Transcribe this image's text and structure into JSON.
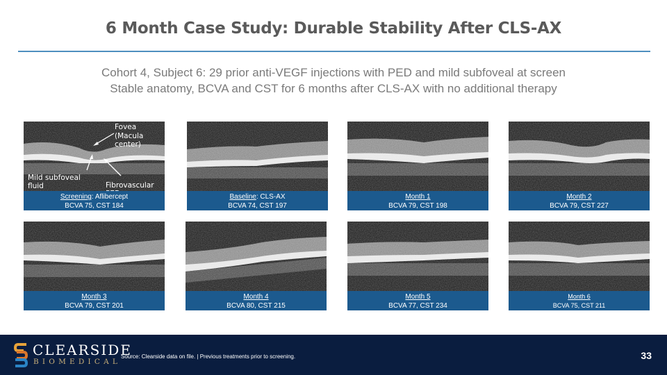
{
  "slide": {
    "title": "6 Month Case Study: Durable Stability After CLS-AX",
    "subtitle_line1": "Cohort 4, Subject 6: 29 prior anti-VEGF injections with PED and mild subfoveal at screen",
    "subtitle_line2": "Stable anatomy, BCVA and CST for 6 months after CLS-AX with no additional therapy",
    "page_number": "33"
  },
  "annotations": {
    "fovea": "Fovea",
    "macula": "(Macula center)",
    "fluid_line1": "Mild subfoveal",
    "fluid_line2": "fluid",
    "ped": "Fibrovascular PED"
  },
  "panels": [
    {
      "label": "Screening",
      "label_suffix": ": Aflibercept",
      "stats": "BCVA 75, CST 184"
    },
    {
      "label": "Baseline",
      "label_suffix": ": CLS-AX",
      "stats": "BCVA 74, CST 197"
    },
    {
      "label": "Month 1",
      "label_suffix": "",
      "stats": "BCVA 79, CST 198"
    },
    {
      "label": "Month 2",
      "label_suffix": "",
      "stats": "BCVA 79, CST 227"
    },
    {
      "label": "Month 3",
      "label_suffix": "",
      "stats": "BCVA 79, CST 201"
    },
    {
      "label": "Month 4",
      "label_suffix": "",
      "stats": "BCVA 80, CST  215"
    },
    {
      "label": "Month 5",
      "label_suffix": "",
      "stats": "BCVA 77, CST 234"
    },
    {
      "label": "Month 6",
      "label_suffix": "",
      "stats": "BCVA 75, CST 211"
    }
  ],
  "footer": {
    "logo_line1": "CLEARSIDE",
    "logo_line2": "BIOMEDICAL",
    "source": "Source: Clearside data on file. | Previous treatments prior to screening."
  },
  "colors": {
    "caption_bg": "#1c5a8e",
    "rule": "#4e8fbf",
    "footer_bg": "#0a1d3f",
    "logo_gold": "#c9b07a"
  }
}
